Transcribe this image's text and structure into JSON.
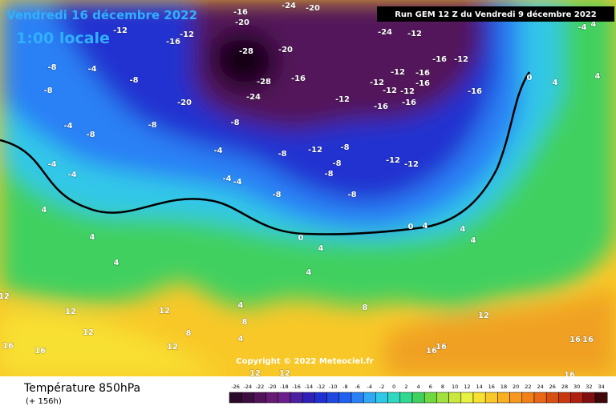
{
  "header": {
    "date": "Vendredi 16 décembre 2022",
    "time": "1:00 locale",
    "run": "Run GEM 12 Z du Vendredi 9 décembre 2022"
  },
  "copyright": "Copyright © 2022 Meteociel.fr",
  "footer": {
    "title": "Température 850hPa",
    "lead": "(+ 156h)"
  },
  "legend": {
    "labels": [
      -26,
      -24,
      -22,
      -20,
      -18,
      -16,
      -14,
      -12,
      -10,
      -8,
      -6,
      -4,
      -2,
      0,
      2,
      4,
      6,
      8,
      10,
      12,
      14,
      16,
      18,
      20,
      22,
      24,
      26,
      28,
      30,
      32,
      34
    ],
    "colors": [
      "#2a0a2a",
      "#3e0d40",
      "#52135a",
      "#661a72",
      "#6a1f8a",
      "#4a1fa0",
      "#3020b8",
      "#2030d0",
      "#1f48e0",
      "#2060f0",
      "#2a80f5",
      "#30a8f5",
      "#30c8e8",
      "#30d8c0",
      "#30d890",
      "#40d060",
      "#70d840",
      "#a0e040",
      "#c8e840",
      "#e8f040",
      "#f8e030",
      "#f8c828",
      "#f8b020",
      "#f89820",
      "#f08018",
      "#e86818",
      "#d85010",
      "#c83810",
      "#b02010",
      "#801010",
      "#400808"
    ]
  },
  "map": {
    "contour_labels": [
      -8,
      -4,
      -8,
      -8,
      -4,
      -8,
      -8,
      -8,
      -4,
      -4,
      -4,
      -4,
      -4,
      -8,
      -8,
      -12,
      -8,
      -8,
      -8,
      -8,
      -12,
      -12,
      -16,
      -12,
      -12,
      -12,
      -16,
      -16,
      -16,
      -12,
      -16,
      -12,
      -16,
      -12,
      -24,
      -12,
      -28,
      -20,
      -16,
      -28,
      -24,
      -20,
      -16,
      -12,
      -24,
      -20,
      -16,
      -20,
      -12,
      4,
      4,
      4,
      4,
      4,
      0,
      0,
      4,
      4,
      4,
      4,
      4,
      8,
      8,
      8,
      12,
      12,
      12,
      12,
      12,
      16,
      16,
      16,
      16,
      12,
      16,
      16,
      16,
      12,
      12,
      4,
      0,
      -4,
      4,
      4
    ]
  }
}
